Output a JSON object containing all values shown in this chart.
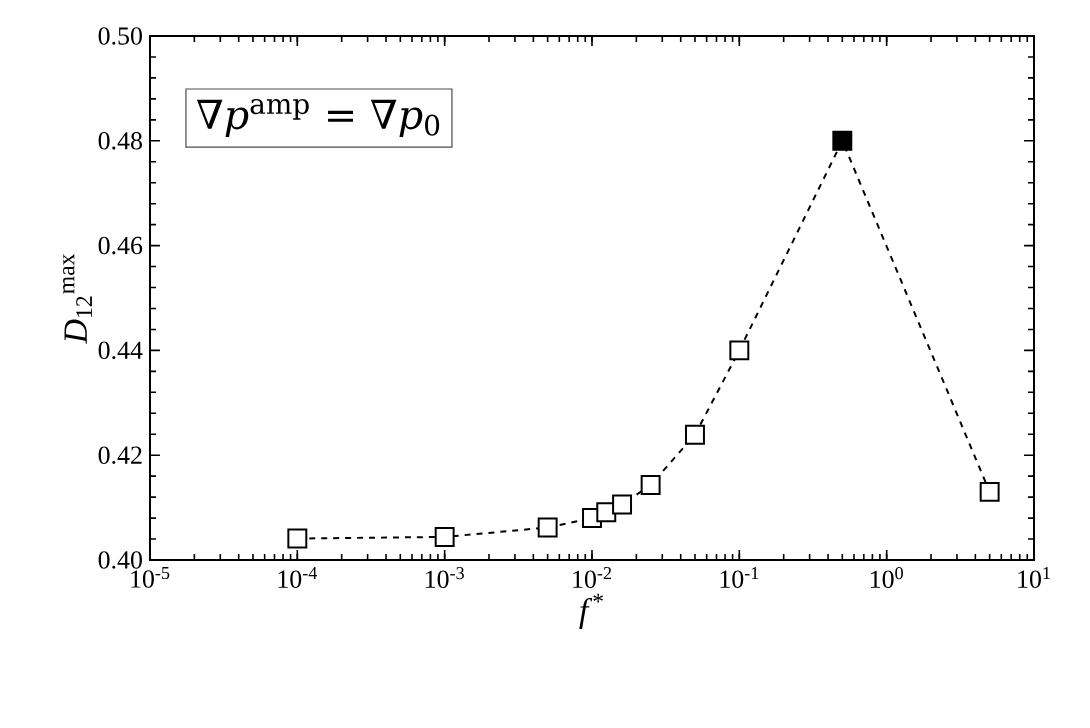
{
  "chart_data": {
    "type": "line",
    "xlabel": "*f*$^{*}$",
    "ylabel": "*D*$_{12}$$^{max}$",
    "log": "x",
    "annotations": [
      "∇*p*$^{amp}$ = ∇*p*$_{0}$"
    ],
    "xlim": [
      1e-05,
      10
    ],
    "ylim": [
      0.4,
      0.5
    ],
    "xticks": [
      {
        "value": 1e-05,
        "label": "10$^{-5}$"
      },
      {
        "value": 0.0001,
        "label": "10$^{-4}$"
      },
      {
        "value": 0.001,
        "label": "10$^{-3}$"
      },
      {
        "value": 0.01,
        "label": "10$^{-2}$"
      },
      {
        "value": 0.1,
        "label": "10$^{-1}$"
      },
      {
        "value": 1,
        "label": "10$^{0}$"
      },
      {
        "value": 10,
        "label": "10$^{1}$"
      }
    ],
    "yticks": [
      {
        "value": 0.4,
        "label": "0.40"
      },
      {
        "value": 0.42,
        "label": "0.42"
      },
      {
        "value": 0.44,
        "label": "0.44"
      },
      {
        "value": 0.46,
        "label": "0.46"
      },
      {
        "value": 0.48,
        "label": "0.48"
      },
      {
        "value": 0.5,
        "label": "0.50"
      }
    ],
    "marker": "square",
    "line_style": "dashed",
    "grid": false,
    "series": [
      {
        "color": "#000000",
        "x": [
          0.0001,
          0.001,
          0.005,
          0.01,
          0.0125,
          0.016,
          0.025,
          0.05,
          0.1,
          0.5,
          5
        ],
        "values": [
          0.4041,
          0.4044,
          0.4062,
          0.408,
          0.4091,
          0.4106,
          0.4143,
          0.4239,
          0.44,
          0.48,
          0.413
        ],
        "colors": [
          "#ffffff",
          "#ffffff",
          "#ffffff",
          "#ffffff",
          "#ffffff",
          "#ffffff",
          "#ffffff",
          "#ffffff",
          "#ffffff",
          "#000000",
          "#ffffff"
        ]
      }
    ]
  }
}
